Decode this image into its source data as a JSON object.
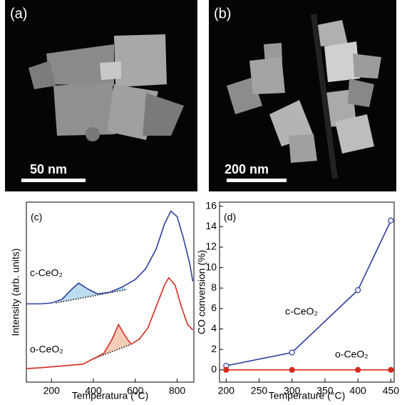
{
  "images": [
    {
      "label": "(a)",
      "scale_bar": "50 nm"
    },
    {
      "label": "(b)",
      "scale_bar": "200 nm"
    }
  ],
  "chart_data": [
    {
      "type": "line",
      "panel_label": "(c)",
      "xlabel": "Temperatura (°C)",
      "ylabel": "Intensity (arb. units)",
      "xlim": [
        80,
        880
      ],
      "ylim": [
        0,
        10
      ],
      "xticks": [
        200,
        400,
        600,
        800
      ],
      "series": [
        {
          "name": "c-CeO₂",
          "color": "#2b3f9e",
          "fill": "#bcdcf0",
          "x": [
            80,
            150,
            200,
            250,
            300,
            330,
            370,
            420,
            480,
            540,
            600,
            650,
            700,
            740,
            770,
            800,
            830,
            860,
            875
          ],
          "values": [
            4.35,
            4.35,
            4.4,
            4.6,
            5.2,
            5.5,
            5.2,
            4.9,
            5.0,
            5.3,
            5.7,
            6.3,
            7.4,
            8.8,
            9.5,
            9.2,
            8.0,
            6.6,
            5.6
          ],
          "baseline": {
            "x": [
              220,
              560
            ],
            "values": [
              4.4,
              5.15
            ]
          }
        },
        {
          "name": "o-CeO₂",
          "color": "#d42a1e",
          "fill": "#f6cdb8",
          "x": [
            80,
            150,
            200,
            250,
            300,
            350,
            400,
            450,
            490,
            520,
            550,
            580,
            620,
            660,
            700,
            740,
            760,
            790,
            820,
            850,
            875
          ],
          "values": [
            0.75,
            0.8,
            0.85,
            0.9,
            0.95,
            1.0,
            1.3,
            1.6,
            2.4,
            3.2,
            2.6,
            2.1,
            2.4,
            3.0,
            4.2,
            5.4,
            5.8,
            5.4,
            4.2,
            3.2,
            2.9
          ],
          "baseline": {
            "x": [
              400,
              580
            ],
            "values": [
              1.3,
              2.1
            ]
          }
        }
      ]
    },
    {
      "type": "line",
      "panel_label": "(d)",
      "xlabel": "Temperature (°C)",
      "ylabel": "CO conversion (%)",
      "xlim": [
        190,
        455
      ],
      "ylim": [
        -1.2,
        16.4
      ],
      "xticks": [
        200,
        250,
        300,
        350,
        400,
        450
      ],
      "yticks": [
        0,
        2,
        4,
        6,
        8,
        10,
        12,
        14,
        16
      ],
      "series": [
        {
          "name": "c-CeO₂",
          "color": "#2b3f9e",
          "marker": "open",
          "x": [
            200,
            300,
            400,
            450
          ],
          "values": [
            0.4,
            1.7,
            7.8,
            14.6
          ]
        },
        {
          "name": "o-CeO₂",
          "color": "#d42a1e",
          "marker": "filled",
          "x": [
            200,
            300,
            400,
            450
          ],
          "values": [
            0,
            0,
            0,
            0
          ]
        }
      ]
    }
  ]
}
